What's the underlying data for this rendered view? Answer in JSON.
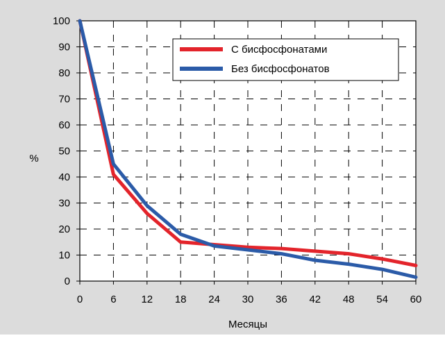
{
  "chart_data": {
    "type": "line",
    "xlabel": "Месяцы",
    "ylabel": "%",
    "x": [
      0,
      6,
      12,
      18,
      24,
      30,
      36,
      42,
      48,
      54,
      60
    ],
    "xticks": [
      "0",
      "6",
      "12",
      "18",
      "24",
      "30",
      "36",
      "42",
      "48",
      "54",
      "60"
    ],
    "yticks": [
      "0",
      "10",
      "20",
      "30",
      "40",
      "50",
      "60",
      "70",
      "80",
      "90",
      "100"
    ],
    "xlim": [
      0,
      60
    ],
    "ylim": [
      0,
      100
    ],
    "grid": true,
    "legend_position": "top-right",
    "series": [
      {
        "name": "С бисфосфонатами",
        "color": "#e3242b",
        "values": [
          100,
          41,
          26,
          15,
          14,
          13,
          12.5,
          11.5,
          10.5,
          8.5,
          6
        ]
      },
      {
        "name": "Без бисфосфонатов",
        "color": "#2b5ba8",
        "values": [
          100,
          45,
          29,
          18,
          13.5,
          12,
          10.5,
          8,
          6.5,
          4.5,
          1.5
        ]
      }
    ]
  },
  "colors": {
    "background": "#dcdcdc",
    "plot_background": "#ffffff",
    "grid": "#000000"
  }
}
